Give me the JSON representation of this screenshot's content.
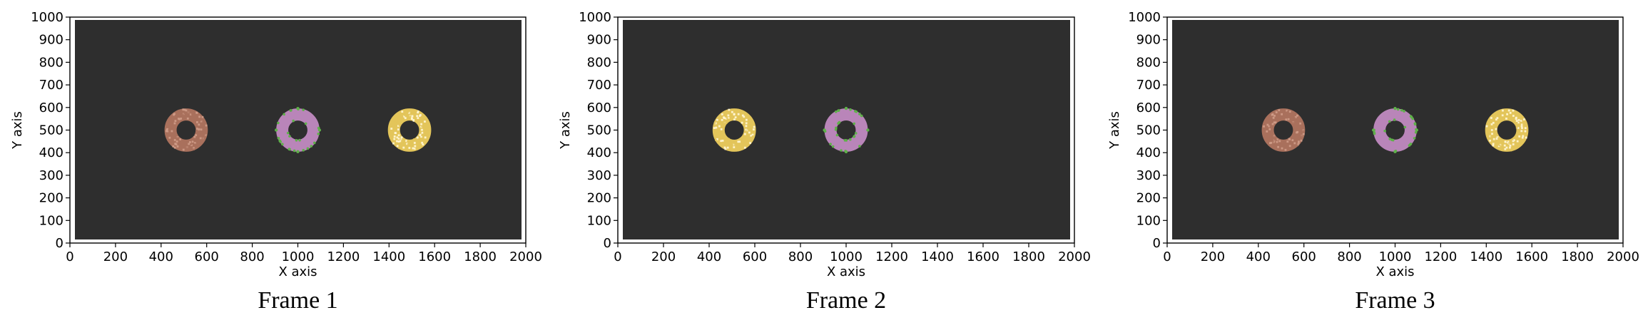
{
  "chart_data": [
    {
      "type": "scatter",
      "title": "",
      "caption": "Frame 1",
      "xlabel": "X axis",
      "ylabel": "Y axis",
      "xlim": [
        0,
        2000
      ],
      "ylim": [
        0,
        1000
      ],
      "xticks": [
        0,
        200,
        400,
        600,
        800,
        1000,
        1200,
        1400,
        1600,
        1800,
        2000
      ],
      "yticks": [
        0,
        100,
        200,
        300,
        400,
        500,
        600,
        700,
        800,
        900,
        1000
      ],
      "xtick_labels": [
        "0",
        "200",
        "400",
        "600",
        "800",
        "1000",
        "1200",
        "1400",
        "1600",
        "1800",
        "2000"
      ],
      "ytick_labels": [
        "0",
        "100",
        "200",
        "300",
        "400",
        "500",
        "600",
        "700",
        "800",
        "900",
        "1000"
      ],
      "background_color": "#2e2e2e",
      "grid": false,
      "rings": [
        {
          "x": 510,
          "y": 500,
          "outer_radius": 95,
          "inner_radius": 42,
          "color": "#a9705c",
          "highlight": "#cf9c88",
          "style": "speckled"
        },
        {
          "x": 1000,
          "y": 500,
          "outer_radius": 95,
          "inner_radius": 42,
          "color": "#b985b9",
          "highlight": "#5fb04a",
          "style": "green-dots"
        },
        {
          "x": 1490,
          "y": 500,
          "outer_radius": 95,
          "inner_radius": 42,
          "color": "#e3c55a",
          "highlight": "#fff6d5",
          "style": "speckled"
        }
      ]
    },
    {
      "type": "scatter",
      "title": "",
      "caption": "Frame 2",
      "xlabel": "X axis",
      "ylabel": "Y axis",
      "xlim": [
        0,
        2000
      ],
      "ylim": [
        0,
        1000
      ],
      "xticks": [
        0,
        200,
        400,
        600,
        800,
        1000,
        1200,
        1400,
        1600,
        1800,
        2000
      ],
      "yticks": [
        0,
        100,
        200,
        300,
        400,
        500,
        600,
        700,
        800,
        900,
        1000
      ],
      "xtick_labels": [
        "0",
        "200",
        "400",
        "600",
        "800",
        "1000",
        "1200",
        "1400",
        "1600",
        "1800",
        "2000"
      ],
      "ytick_labels": [
        "0",
        "100",
        "200",
        "300",
        "400",
        "500",
        "600",
        "700",
        "800",
        "900",
        "1000"
      ],
      "background_color": "#2e2e2e",
      "grid": false,
      "rings": [
        {
          "x": 510,
          "y": 500,
          "outer_radius": 95,
          "inner_radius": 42,
          "color": "#e3c55a",
          "highlight": "#fff6d5",
          "style": "speckled"
        },
        {
          "x": 1000,
          "y": 500,
          "outer_radius": 95,
          "inner_radius": 42,
          "color": "#b985b9",
          "highlight": "#5fb04a",
          "style": "green-dots"
        }
      ]
    },
    {
      "type": "scatter",
      "title": "",
      "caption": "Frame 3",
      "xlabel": "X axis",
      "ylabel": "Y axis",
      "xlim": [
        0,
        2000
      ],
      "ylim": [
        0,
        1000
      ],
      "xticks": [
        0,
        200,
        400,
        600,
        800,
        1000,
        1200,
        1400,
        1600,
        1800,
        2000
      ],
      "yticks": [
        0,
        100,
        200,
        300,
        400,
        500,
        600,
        700,
        800,
        900,
        1000
      ],
      "xtick_labels": [
        "0",
        "200",
        "400",
        "600",
        "800",
        "1000",
        "1200",
        "1400",
        "1600",
        "1800",
        "2000"
      ],
      "ytick_labels": [
        "0",
        "100",
        "200",
        "300",
        "400",
        "500",
        "600",
        "700",
        "800",
        "900",
        "1000"
      ],
      "background_color": "#2e2e2e",
      "grid": false,
      "rings": [
        {
          "x": 510,
          "y": 500,
          "outer_radius": 95,
          "inner_radius": 42,
          "color": "#a9705c",
          "highlight": "#cf9c88",
          "style": "speckled"
        },
        {
          "x": 1000,
          "y": 500,
          "outer_radius": 95,
          "inner_radius": 42,
          "color": "#b985b9",
          "highlight": "#5fb04a",
          "style": "green-dots"
        },
        {
          "x": 1490,
          "y": 500,
          "outer_radius": 95,
          "inner_radius": 42,
          "color": "#e3c55a",
          "highlight": "#fff6d5",
          "style": "speckled"
        }
      ]
    }
  ]
}
